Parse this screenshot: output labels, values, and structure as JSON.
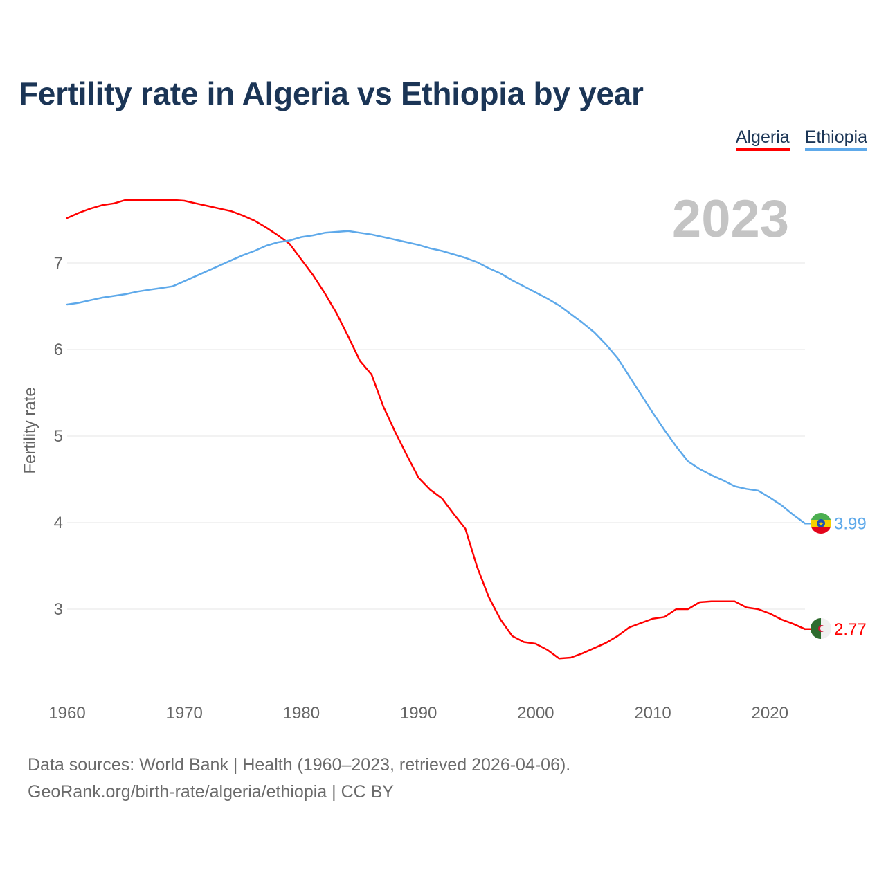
{
  "title": "Fertility rate in Algeria vs Ethiopia by year",
  "legend": {
    "algeria": "Algeria",
    "ethiopia": "Ethiopia"
  },
  "year_watermark": "2023",
  "footer": {
    "line1": "Data sources: World Bank | Health (1960–2023, retrieved 2026-04-06).",
    "line2": "GeoRank.org/birth-rate/algeria/ethiopia | CC BY"
  },
  "colors": {
    "algeria": "#ff0000",
    "ethiopia": "#5ea9ea",
    "grid": "#e6e6e6",
    "axis_text": "#666666",
    "watermark": "#c4c4c4"
  },
  "chart_data": {
    "type": "line",
    "title": "Fertility rate in Algeria vs Ethiopia by year",
    "xlabel": "",
    "ylabel": "Fertility rate",
    "xlim": [
      1960,
      2023
    ],
    "ylim": [
      2,
      8
    ],
    "x_ticks": [
      1960,
      1970,
      1980,
      1990,
      2000,
      2010,
      2020
    ],
    "y_ticks": [
      3,
      4,
      5,
      6,
      7
    ],
    "grid": true,
    "legend_position": "top-right",
    "x": [
      1960,
      1961,
      1962,
      1963,
      1964,
      1965,
      1966,
      1967,
      1968,
      1969,
      1970,
      1971,
      1972,
      1973,
      1974,
      1975,
      1976,
      1977,
      1978,
      1979,
      1980,
      1981,
      1982,
      1983,
      1984,
      1985,
      1986,
      1987,
      1988,
      1989,
      1990,
      1991,
      1992,
      1993,
      1994,
      1995,
      1996,
      1997,
      1998,
      1999,
      2000,
      2001,
      2002,
      2003,
      2004,
      2005,
      2006,
      2007,
      2008,
      2009,
      2010,
      2011,
      2012,
      2013,
      2014,
      2015,
      2016,
      2017,
      2018,
      2019,
      2020,
      2021,
      2022,
      2023
    ],
    "series": [
      {
        "name": "Algeria",
        "color": "#ff0000",
        "end_label": "2.77",
        "values": [
          7.52,
          7.58,
          7.63,
          7.67,
          7.69,
          7.73,
          7.73,
          7.73,
          7.73,
          7.73,
          7.72,
          7.69,
          7.66,
          7.63,
          7.6,
          7.55,
          7.49,
          7.41,
          7.32,
          7.22,
          7.04,
          6.86,
          6.65,
          6.42,
          6.15,
          5.87,
          5.71,
          5.34,
          5.05,
          4.78,
          4.52,
          4.38,
          4.28,
          4.1,
          3.93,
          3.49,
          3.14,
          2.88,
          2.69,
          2.62,
          2.6,
          2.53,
          2.43,
          2.44,
          2.49,
          2.55,
          2.61,
          2.69,
          2.79,
          2.84,
          2.89,
          2.91,
          3.0,
          3.0,
          3.08,
          3.09,
          3.09,
          3.09,
          3.02,
          3.0,
          2.95,
          2.88,
          2.83,
          2.77
        ]
      },
      {
        "name": "Ethiopia",
        "color": "#5ea9ea",
        "end_label": "3.99",
        "values": [
          6.52,
          6.54,
          6.57,
          6.6,
          6.62,
          6.64,
          6.67,
          6.69,
          6.71,
          6.73,
          6.79,
          6.85,
          6.91,
          6.97,
          7.03,
          7.09,
          7.14,
          7.2,
          7.24,
          7.26,
          7.3,
          7.32,
          7.35,
          7.36,
          7.37,
          7.35,
          7.33,
          7.3,
          7.27,
          7.24,
          7.21,
          7.17,
          7.14,
          7.1,
          7.06,
          7.01,
          6.94,
          6.88,
          6.8,
          6.73,
          6.66,
          6.59,
          6.51,
          6.41,
          6.31,
          6.2,
          6.06,
          5.9,
          5.69,
          5.48,
          5.27,
          5.07,
          4.88,
          4.71,
          4.62,
          4.55,
          4.49,
          4.42,
          4.39,
          4.37,
          4.29,
          4.2,
          4.09,
          3.99
        ]
      }
    ]
  }
}
